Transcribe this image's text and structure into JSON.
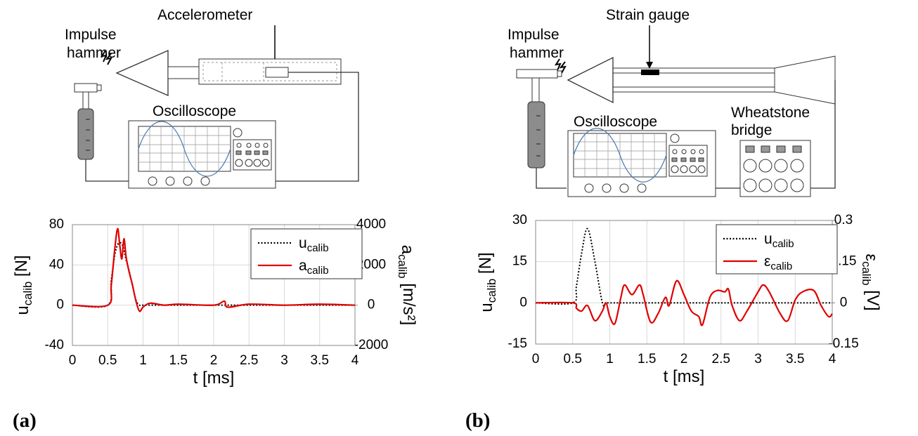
{
  "diagrams": [
    {
      "labels": {
        "hammer": [
          "Impulse",
          "hammer"
        ],
        "sensor": [
          "Accelerometer"
        ],
        "scope": [
          "Oscilloscope"
        ]
      }
    },
    {
      "labels": {
        "hammer": [
          "Impulse",
          "hammer"
        ],
        "sensor": [
          "Strain gauge"
        ],
        "scope": [
          "Oscilloscope"
        ],
        "bridge": [
          "Wheatstone",
          "bridge"
        ]
      }
    }
  ],
  "panel_labels": [
    "(a)",
    "(b)"
  ],
  "chart_data": [
    {
      "type": "line",
      "xlabel": "t [ms]",
      "ylabel": {
        "main": "u",
        "sub": "calib",
        "unit": " [N]"
      },
      "y2label": {
        "main": "a",
        "sub": "calib",
        "unit": " [m/s²]"
      },
      "x": [
        0,
        0.5,
        0.55,
        0.6,
        0.64,
        0.67,
        0.7,
        0.73,
        0.76,
        0.8,
        0.85,
        0.9,
        0.95,
        1.0,
        1.1,
        1.3,
        1.5,
        2.0,
        2.15,
        2.2,
        2.5,
        3.0,
        3.5,
        4.0
      ],
      "series": [
        {
          "name": "u",
          "name_sub": "calib",
          "color": "#000000",
          "dash": "dotted",
          "values": [
            0,
            0,
            25,
            50,
            60,
            62,
            61,
            55,
            45,
            35,
            20,
            5,
            0,
            0,
            0,
            0,
            0,
            0,
            0,
            0,
            0,
            0,
            0,
            0
          ]
        },
        {
          "name": "a",
          "name_sub": "calib",
          "color": "#e00000",
          "dash": "solid",
          "axis": "y2",
          "values": [
            0,
            0,
            1000,
            2800,
            3800,
            3000,
            2300,
            3300,
            2400,
            1700,
            1000,
            200,
            -300,
            -100,
            100,
            0,
            50,
            0,
            200,
            -100,
            50,
            0,
            50,
            0
          ]
        }
      ],
      "xlim": [
        0,
        4
      ],
      "xticks": [
        0,
        0.5,
        1,
        1.5,
        2,
        2.5,
        3,
        3.5,
        4
      ],
      "ylim": [
        -40,
        80
      ],
      "yticks": [
        -40,
        0,
        40,
        80
      ],
      "y2lim": [
        -2000,
        4000
      ],
      "y2ticks": [
        -2000,
        0,
        2000,
        4000
      ],
      "grid": true,
      "legend": "upper right"
    },
    {
      "type": "line",
      "xlabel": "t [ms]",
      "ylabel": {
        "main": "u",
        "sub": "calib",
        "unit": " [N]"
      },
      "y2label": {
        "main": "ε",
        "sub": "calib",
        "unit": " [V]"
      },
      "x": [
        0,
        0.5,
        0.55,
        0.62,
        0.7,
        0.8,
        0.9,
        0.95,
        1.0,
        1.07,
        1.15,
        1.2,
        1.3,
        1.4,
        1.45,
        1.55,
        1.65,
        1.75,
        1.8,
        1.9,
        2.0,
        2.1,
        2.2,
        2.25,
        2.35,
        2.45,
        2.55,
        2.6,
        2.65,
        2.75,
        2.85,
        3.0,
        3.07,
        3.15,
        3.3,
        3.4,
        3.5,
        3.6,
        3.75,
        3.85,
        3.95,
        4.0
      ],
      "series": [
        {
          "name": "u",
          "name_sub": "calib",
          "color": "#000000",
          "dash": "dotted",
          "values": [
            0,
            0,
            6,
            18,
            27,
            15,
            0,
            0,
            0,
            0,
            0,
            0,
            0,
            0,
            0,
            0,
            0,
            0,
            0,
            0,
            0,
            0,
            0,
            0,
            0,
            0,
            0,
            0,
            0,
            0,
            0,
            0,
            0,
            0,
            0,
            0,
            0,
            0,
            0,
            0,
            0,
            0
          ]
        },
        {
          "name": "ε",
          "name_sub": "calib",
          "color": "#e00000",
          "dash": "solid",
          "axis": "y2",
          "values": [
            0,
            0,
            -0.02,
            -0.03,
            -0.01,
            -0.065,
            -0.03,
            0,
            -0.05,
            -0.075,
            0.02,
            0.065,
            0.03,
            0.065,
            0.03,
            -0.07,
            -0.04,
            0.02,
            -0.01,
            0.08,
            0.03,
            -0.03,
            -0.05,
            -0.08,
            0.02,
            0.045,
            0.04,
            0.05,
            -0.01,
            -0.065,
            -0.03,
            0.04,
            0.065,
            0.04,
            -0.04,
            -0.065,
            0.01,
            0.04,
            0.045,
            -0.01,
            -0.05,
            -0.04
          ]
        }
      ],
      "xlim": [
        0,
        4
      ],
      "xticks": [
        0,
        0.5,
        1,
        1.5,
        2,
        2.5,
        3,
        3.5,
        4
      ],
      "ylim": [
        -15,
        30
      ],
      "yticks": [
        -15,
        0,
        15,
        30
      ],
      "y2lim": [
        -0.15,
        0.3
      ],
      "y2ticks": [
        -0.15,
        0,
        0.15,
        0.3
      ],
      "grid": true,
      "legend": "upper right"
    }
  ]
}
